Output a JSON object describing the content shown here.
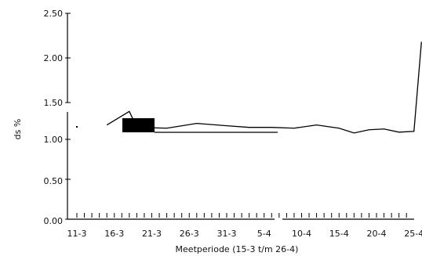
{
  "chart_data": {
    "type": "line",
    "title": "",
    "xlabel": "Meetperiode (15-3 t/m 26-4)",
    "ylabel": "ds %",
    "ylim": [
      0,
      2.5
    ],
    "y_ticks": [
      "2.50",
      "2.00",
      "1.50",
      "1.00",
      "0.50",
      "0.00"
    ],
    "y_tick_values": [
      2.5,
      2.0,
      1.5,
      1.0,
      0.5,
      0.0
    ],
    "axis_break": "between 1.50 and top of lower segment",
    "x_tick_labels": [
      "11-3",
      "16-3",
      "21-3",
      "26-3",
      "31-3",
      "5-4",
      "10-4",
      "15-4",
      "20-4",
      "25-4"
    ],
    "series": [
      {
        "x": [
          "15-3",
          "18-3",
          "19-3",
          "23-3",
          "27-3",
          "31-3",
          "3-4",
          "6-4",
          "9-4",
          "12-4",
          "15-4",
          "17-4",
          "19-4",
          "21-4",
          "23-4",
          "25-4",
          "26-4"
        ],
        "y": [
          1.18,
          1.35,
          1.15,
          1.14,
          1.2,
          1.17,
          1.15,
          1.15,
          1.14,
          1.18,
          1.14,
          1.08,
          1.12,
          1.13,
          1.09,
          1.1,
          2.18
        ],
        "color": "#000000"
      }
    ],
    "annotation": {
      "type": "black-rectangle-with-line",
      "color": "#000000"
    }
  }
}
